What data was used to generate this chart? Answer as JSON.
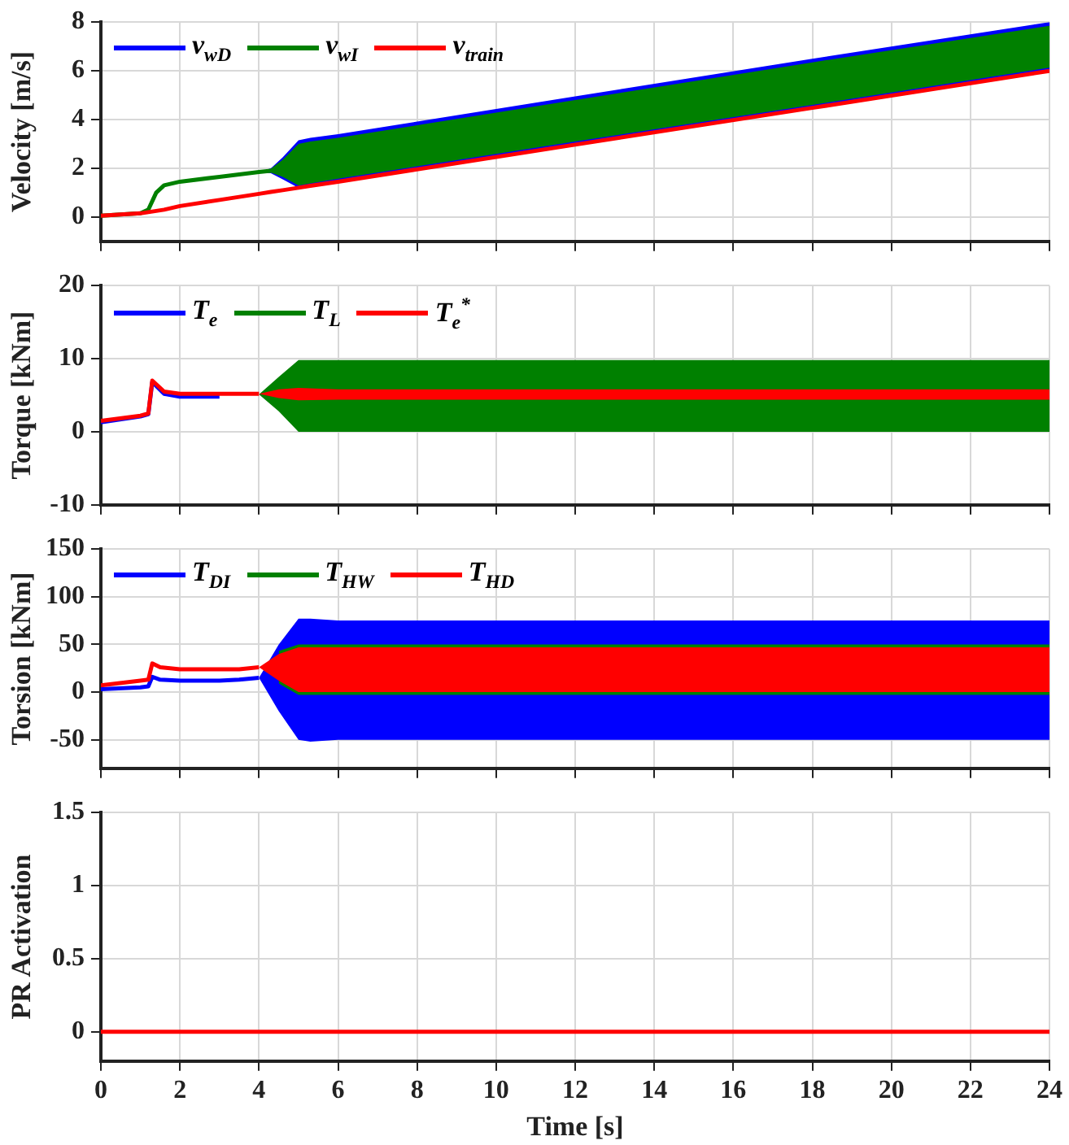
{
  "chart_data": [
    {
      "type": "line",
      "ylabel": "Velocity [m/s]",
      "x": [
        0,
        1,
        1.2,
        1.4,
        1.6,
        2,
        3,
        4,
        4.3,
        4.6,
        5,
        5.3,
        6,
        12,
        18,
        24
      ],
      "xlim": [
        0,
        24
      ],
      "xticks": [
        0,
        2,
        4,
        6,
        8,
        10,
        12,
        14,
        16,
        18,
        20,
        22,
        24
      ],
      "ylim": [
        -1,
        8
      ],
      "yticks": [
        0,
        2,
        4,
        6,
        8
      ],
      "tick_labels": "y",
      "grid": true,
      "legend": "top left",
      "series": [
        {
          "name": "v$_{wD}$",
          "color": "#0000ff",
          "values": [
            null,
            null,
            null,
            null,
            null,
            null,
            null,
            null,
            null,
            null,
            null,
            null,
            null,
            null,
            null,
            null
          ],
          "lower": [
            null,
            null,
            null,
            null,
            null,
            null,
            null,
            1.85,
            1.8,
            1.55,
            1.2,
            1.28,
            1.47,
            2.99,
            4.5,
            6.03
          ],
          "upper": [
            null,
            null,
            null,
            null,
            null,
            null,
            null,
            1.85,
            2.0,
            2.45,
            3.15,
            3.25,
            3.4,
            4.95,
            6.5,
            8.0
          ]
        },
        {
          "name": "v$_{wI}$",
          "color": "#008000",
          "values": [
            0.05,
            0.15,
            0.3,
            1.0,
            1.3,
            1.45,
            1.65,
            1.85,
            1.9,
            null,
            null,
            null,
            null,
            null,
            null,
            null
          ],
          "lower": [
            null,
            null,
            null,
            null,
            null,
            null,
            null,
            1.85,
            1.82,
            1.65,
            1.3,
            1.38,
            1.57,
            3.1,
            4.6,
            6.13
          ],
          "upper": [
            null,
            null,
            null,
            null,
            null,
            null,
            null,
            1.85,
            1.98,
            2.35,
            3.0,
            3.1,
            3.25,
            4.8,
            6.35,
            7.85
          ]
        },
        {
          "name": "v$_{train}$",
          "color": "#ff0000",
          "values": [
            0.05,
            0.15,
            0.2,
            0.25,
            0.3,
            0.45,
            0.7,
            0.95,
            1.03,
            1.1,
            1.2,
            1.28,
            1.45,
            2.97,
            4.48,
            6.0
          ]
        }
      ]
    },
    {
      "type": "line",
      "ylabel": "Torque [kNm]",
      "x": [
        0,
        1,
        1.2,
        1.3,
        1.6,
        2,
        3,
        4,
        4.5,
        5,
        6,
        12,
        18,
        24
      ],
      "xlim": [
        0,
        24
      ],
      "xticks": [
        0,
        2,
        4,
        6,
        8,
        10,
        12,
        14,
        16,
        18,
        20,
        22,
        24
      ],
      "ylim": [
        -10,
        20
      ],
      "yticks": [
        -10,
        0,
        10,
        20
      ],
      "tick_labels": "y",
      "grid": true,
      "legend": "top left",
      "series": [
        {
          "name": "T$_{e}$",
          "color": "#0000ff",
          "values": [
            1.3,
            2.1,
            2.4,
            6.8,
            5.2,
            4.8,
            4.8,
            null,
            null,
            null,
            null,
            null,
            null,
            null
          ]
        },
        {
          "name": "T$_{L}$",
          "color": "#008000",
          "values": [
            null,
            null,
            null,
            null,
            null,
            null,
            null,
            null,
            null,
            null,
            null,
            null,
            null,
            null
          ],
          "lower": [
            null,
            null,
            null,
            null,
            null,
            null,
            null,
            5.1,
            2.8,
            0,
            0,
            0,
            0,
            0
          ],
          "upper": [
            null,
            null,
            null,
            null,
            null,
            null,
            null,
            5.1,
            7.5,
            9.8,
            9.8,
            9.8,
            9.8,
            9.8
          ]
        },
        {
          "name": "T$_{e}$$^{*}$",
          "color": "#ff0000",
          "values": [
            1.5,
            2.2,
            2.5,
            7.0,
            5.5,
            5.2,
            5.2,
            5.2,
            null,
            null,
            null,
            null,
            null,
            null
          ],
          "lower": [
            null,
            null,
            null,
            null,
            null,
            null,
            null,
            5.2,
            4.6,
            4.3,
            4.4,
            4.4,
            4.4,
            4.4
          ],
          "upper": [
            null,
            null,
            null,
            null,
            null,
            null,
            null,
            5.2,
            5.8,
            6.0,
            5.8,
            5.8,
            5.8,
            5.8
          ]
        }
      ]
    },
    {
      "type": "line",
      "ylabel": "Torsion [kNm]",
      "x": [
        0,
        1,
        1.2,
        1.3,
        1.5,
        2,
        3,
        3.5,
        4,
        4.5,
        5,
        5.3,
        6,
        12,
        18,
        24
      ],
      "xlim": [
        0,
        24
      ],
      "xticks": [
        0,
        2,
        4,
        6,
        8,
        10,
        12,
        14,
        16,
        18,
        20,
        22,
        24
      ],
      "ylim": [
        -80,
        150
      ],
      "yticks": [
        -50,
        0,
        50,
        100,
        150
      ],
      "tick_labels": "y",
      "grid": true,
      "legend": "top left",
      "series": [
        {
          "name": "T$_{DI}$",
          "color": "#0000ff",
          "values": [
            3,
            5,
            6,
            16,
            13,
            12,
            12,
            13,
            15,
            null,
            null,
            null,
            null,
            null,
            null,
            null
          ],
          "lower": [
            null,
            null,
            null,
            null,
            null,
            null,
            null,
            null,
            15,
            -20,
            -50,
            -52,
            -50,
            -50,
            -50,
            -50
          ],
          "upper": [
            null,
            null,
            null,
            null,
            null,
            null,
            null,
            null,
            15,
            50,
            77,
            77,
            75,
            75,
            75,
            75
          ]
        },
        {
          "name": "T$_{HW}$",
          "color": "#008000",
          "values": [
            null,
            null,
            null,
            null,
            null,
            null,
            null,
            null,
            null,
            null,
            null,
            null,
            null,
            null,
            null,
            null
          ],
          "lower": [
            null,
            null,
            null,
            null,
            null,
            null,
            null,
            null,
            null,
            9,
            -3,
            -3,
            -3,
            -3,
            -3,
            -3
          ],
          "upper": [
            null,
            null,
            null,
            null,
            null,
            null,
            null,
            null,
            null,
            43,
            50,
            50,
            50,
            50,
            50,
            50
          ]
        },
        {
          "name": "T$_{HD}$",
          "color": "#ff0000",
          "values": [
            7,
            12,
            13,
            30,
            26,
            24,
            24,
            24,
            26,
            null,
            null,
            null,
            null,
            null,
            null,
            null
          ],
          "lower": [
            null,
            null,
            null,
            null,
            null,
            null,
            null,
            null,
            26,
            12,
            0,
            0,
            0,
            0,
            0,
            0
          ],
          "upper": [
            null,
            null,
            null,
            null,
            null,
            null,
            null,
            null,
            26,
            40,
            47,
            47,
            47,
            47,
            47,
            47
          ]
        }
      ]
    },
    {
      "type": "line",
      "ylabel": "PR Activation",
      "xlabel": "Time [s]",
      "x": [
        0,
        24
      ],
      "xlim": [
        0,
        24
      ],
      "xticks": [
        0,
        2,
        4,
        6,
        8,
        10,
        12,
        14,
        16,
        18,
        20,
        22,
        24
      ],
      "ylim": [
        -0.2,
        1.5
      ],
      "yticks": [
        0,
        0.5,
        1,
        1.5
      ],
      "grid": true,
      "series": [
        {
          "color": "#ff0000",
          "values": [
            0,
            0
          ]
        }
      ]
    }
  ]
}
